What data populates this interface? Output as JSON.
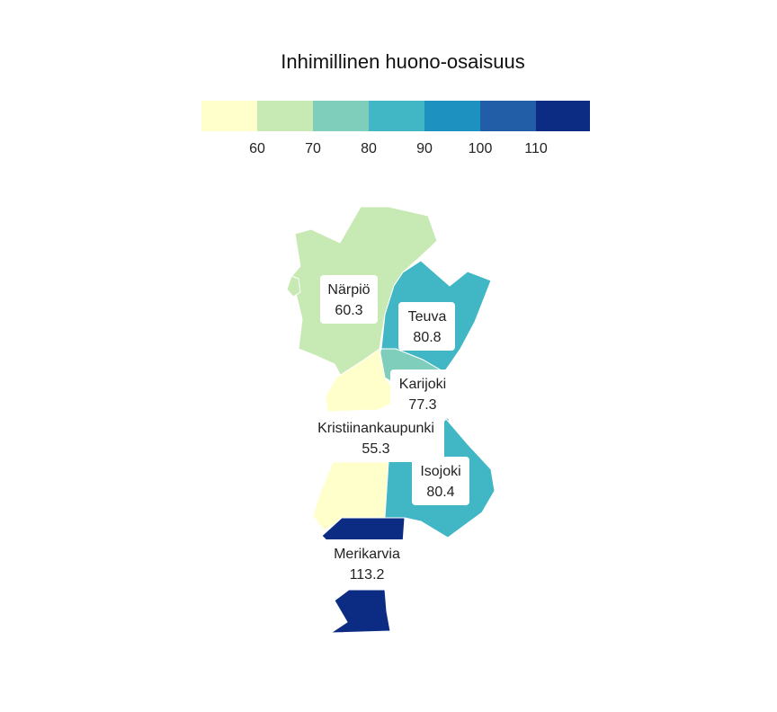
{
  "legend": {
    "title": "Inhimillinen huono-osaisuus",
    "bins": [
      {
        "color": "#ffffcc"
      },
      {
        "color": "#c7e9b4",
        "from": "60"
      },
      {
        "color": "#7fcdbb",
        "from": "70"
      },
      {
        "color": "#41b6c4",
        "from": "80"
      },
      {
        "color": "#1d91c0",
        "from": "90"
      },
      {
        "color": "#225ea8",
        "from": "100"
      },
      {
        "color": "#0c2c84",
        "from": "110"
      }
    ],
    "tick_labels": [
      "60",
      "70",
      "80",
      "90",
      "100",
      "110"
    ]
  },
  "regions": [
    {
      "name": "Närpiö",
      "value": "60.3",
      "color": "#c7e9b4"
    },
    {
      "name": "Teuva",
      "value": "80.8",
      "color": "#41b6c4"
    },
    {
      "name": "Karijoki",
      "value": "77.3",
      "color": "#7fcdbb"
    },
    {
      "name": "Kristiinankaupunki",
      "value": "55.3",
      "color": "#ffffcc"
    },
    {
      "name": "Isojoki",
      "value": "80.4",
      "color": "#41b6c4"
    },
    {
      "name": "Merikarvia",
      "value": "113.2",
      "color": "#0c2c84"
    }
  ]
}
